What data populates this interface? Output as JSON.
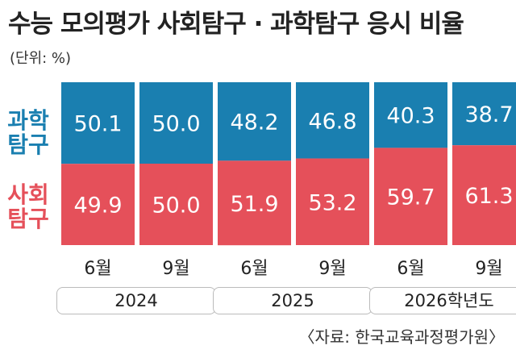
{
  "title": "수능 모의평가 사회탐구 · 과학탐구 응시 비율",
  "unit": "(단위: %)",
  "source": "〈자료: 한국교육과정평가원〉",
  "colors": {
    "science": "#1a7fb0",
    "social": "#e5505a"
  },
  "chart_data": {
    "type": "bar",
    "stacked": true,
    "categories": [
      "6월",
      "9월",
      "6월",
      "9월",
      "6월",
      "9월"
    ],
    "groups": [
      {
        "label": "2024",
        "categories": [
          0,
          1
        ]
      },
      {
        "label": "2025",
        "categories": [
          2,
          3
        ]
      },
      {
        "label": "2026학년도",
        "categories": [
          4,
          5
        ]
      }
    ],
    "series": [
      {
        "name": "과학탐구",
        "name_lines": [
          "과학",
          "탐구"
        ],
        "values": [
          "50.1",
          "50.0",
          "48.2",
          "46.8",
          "40.3",
          "38.7"
        ]
      },
      {
        "name": "사회탐구",
        "name_lines": [
          "사회",
          "탐구"
        ],
        "values": [
          "49.9",
          "50.0",
          "51.9",
          "53.2",
          "59.7",
          "61.3"
        ]
      }
    ],
    "ylim": [
      0,
      100
    ]
  }
}
